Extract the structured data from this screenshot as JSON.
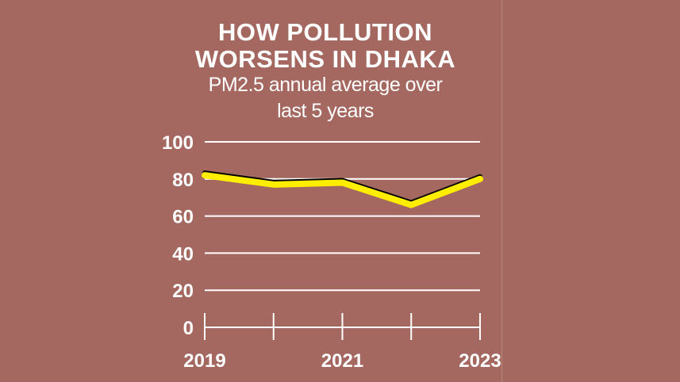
{
  "chart_data": {
    "type": "line",
    "title_line1": "HOW POLLUTION",
    "title_line2": "WORSENS IN DHAKA",
    "subtitle_line1": "PM2.5 annual average over",
    "subtitle_line2": "last 5 years",
    "x": [
      2019,
      2020,
      2021,
      2022,
      2023
    ],
    "x_tick_labels": [
      "2019",
      "",
      "2021",
      "",
      "2023"
    ],
    "series": [
      {
        "values": [
          82,
          77,
          78,
          66,
          80
        ]
      }
    ],
    "y_ticks": [
      "100",
      "80",
      "60",
      "40",
      "20",
      "0"
    ],
    "ylim": [
      0,
      100
    ],
    "grid": true,
    "colors": {
      "background": "#a46860",
      "line": "#ffee00",
      "line_shadow": "#000000",
      "grid": "#ffffff",
      "text": "#ffffff"
    }
  }
}
